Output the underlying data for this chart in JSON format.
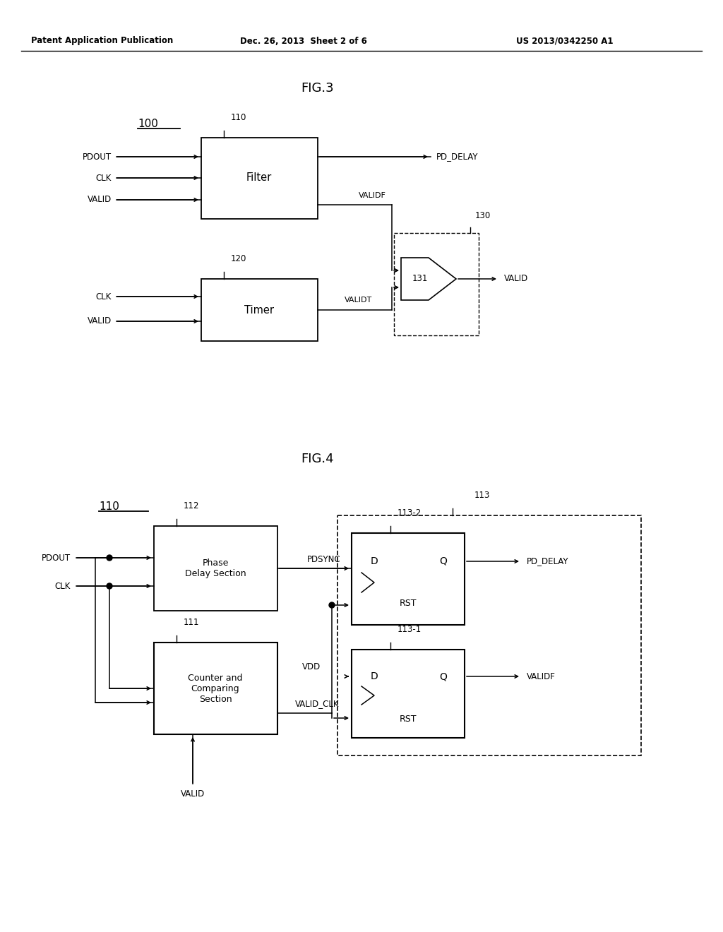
{
  "bg_color": "#ffffff",
  "header_left": "Patent Application Publication",
  "header_center": "Dec. 26, 2013  Sheet 2 of 6",
  "header_right": "US 2013/0342250 A1",
  "fig3_title": "FIG.3",
  "fig3_label": "100",
  "fig3_filter_label": "Filter",
  "fig3_filter_ref": "110",
  "fig3_timer_label": "Timer",
  "fig3_timer_ref": "120",
  "fig3_and_ref": "131",
  "fig3_box_ref": "130",
  "fig4_title": "FIG.4",
  "fig4_label": "110",
  "fig4_pds_label": "Phase\nDelay Section",
  "fig4_pds_ref": "112",
  "fig4_cnt_label": "Counter and\nComparing\nSection",
  "fig4_cnt_ref": "111",
  "fig4_outer_ref": "113",
  "fig4_ff2_ref": "113-2",
  "fig4_ff1_ref": "113-1"
}
